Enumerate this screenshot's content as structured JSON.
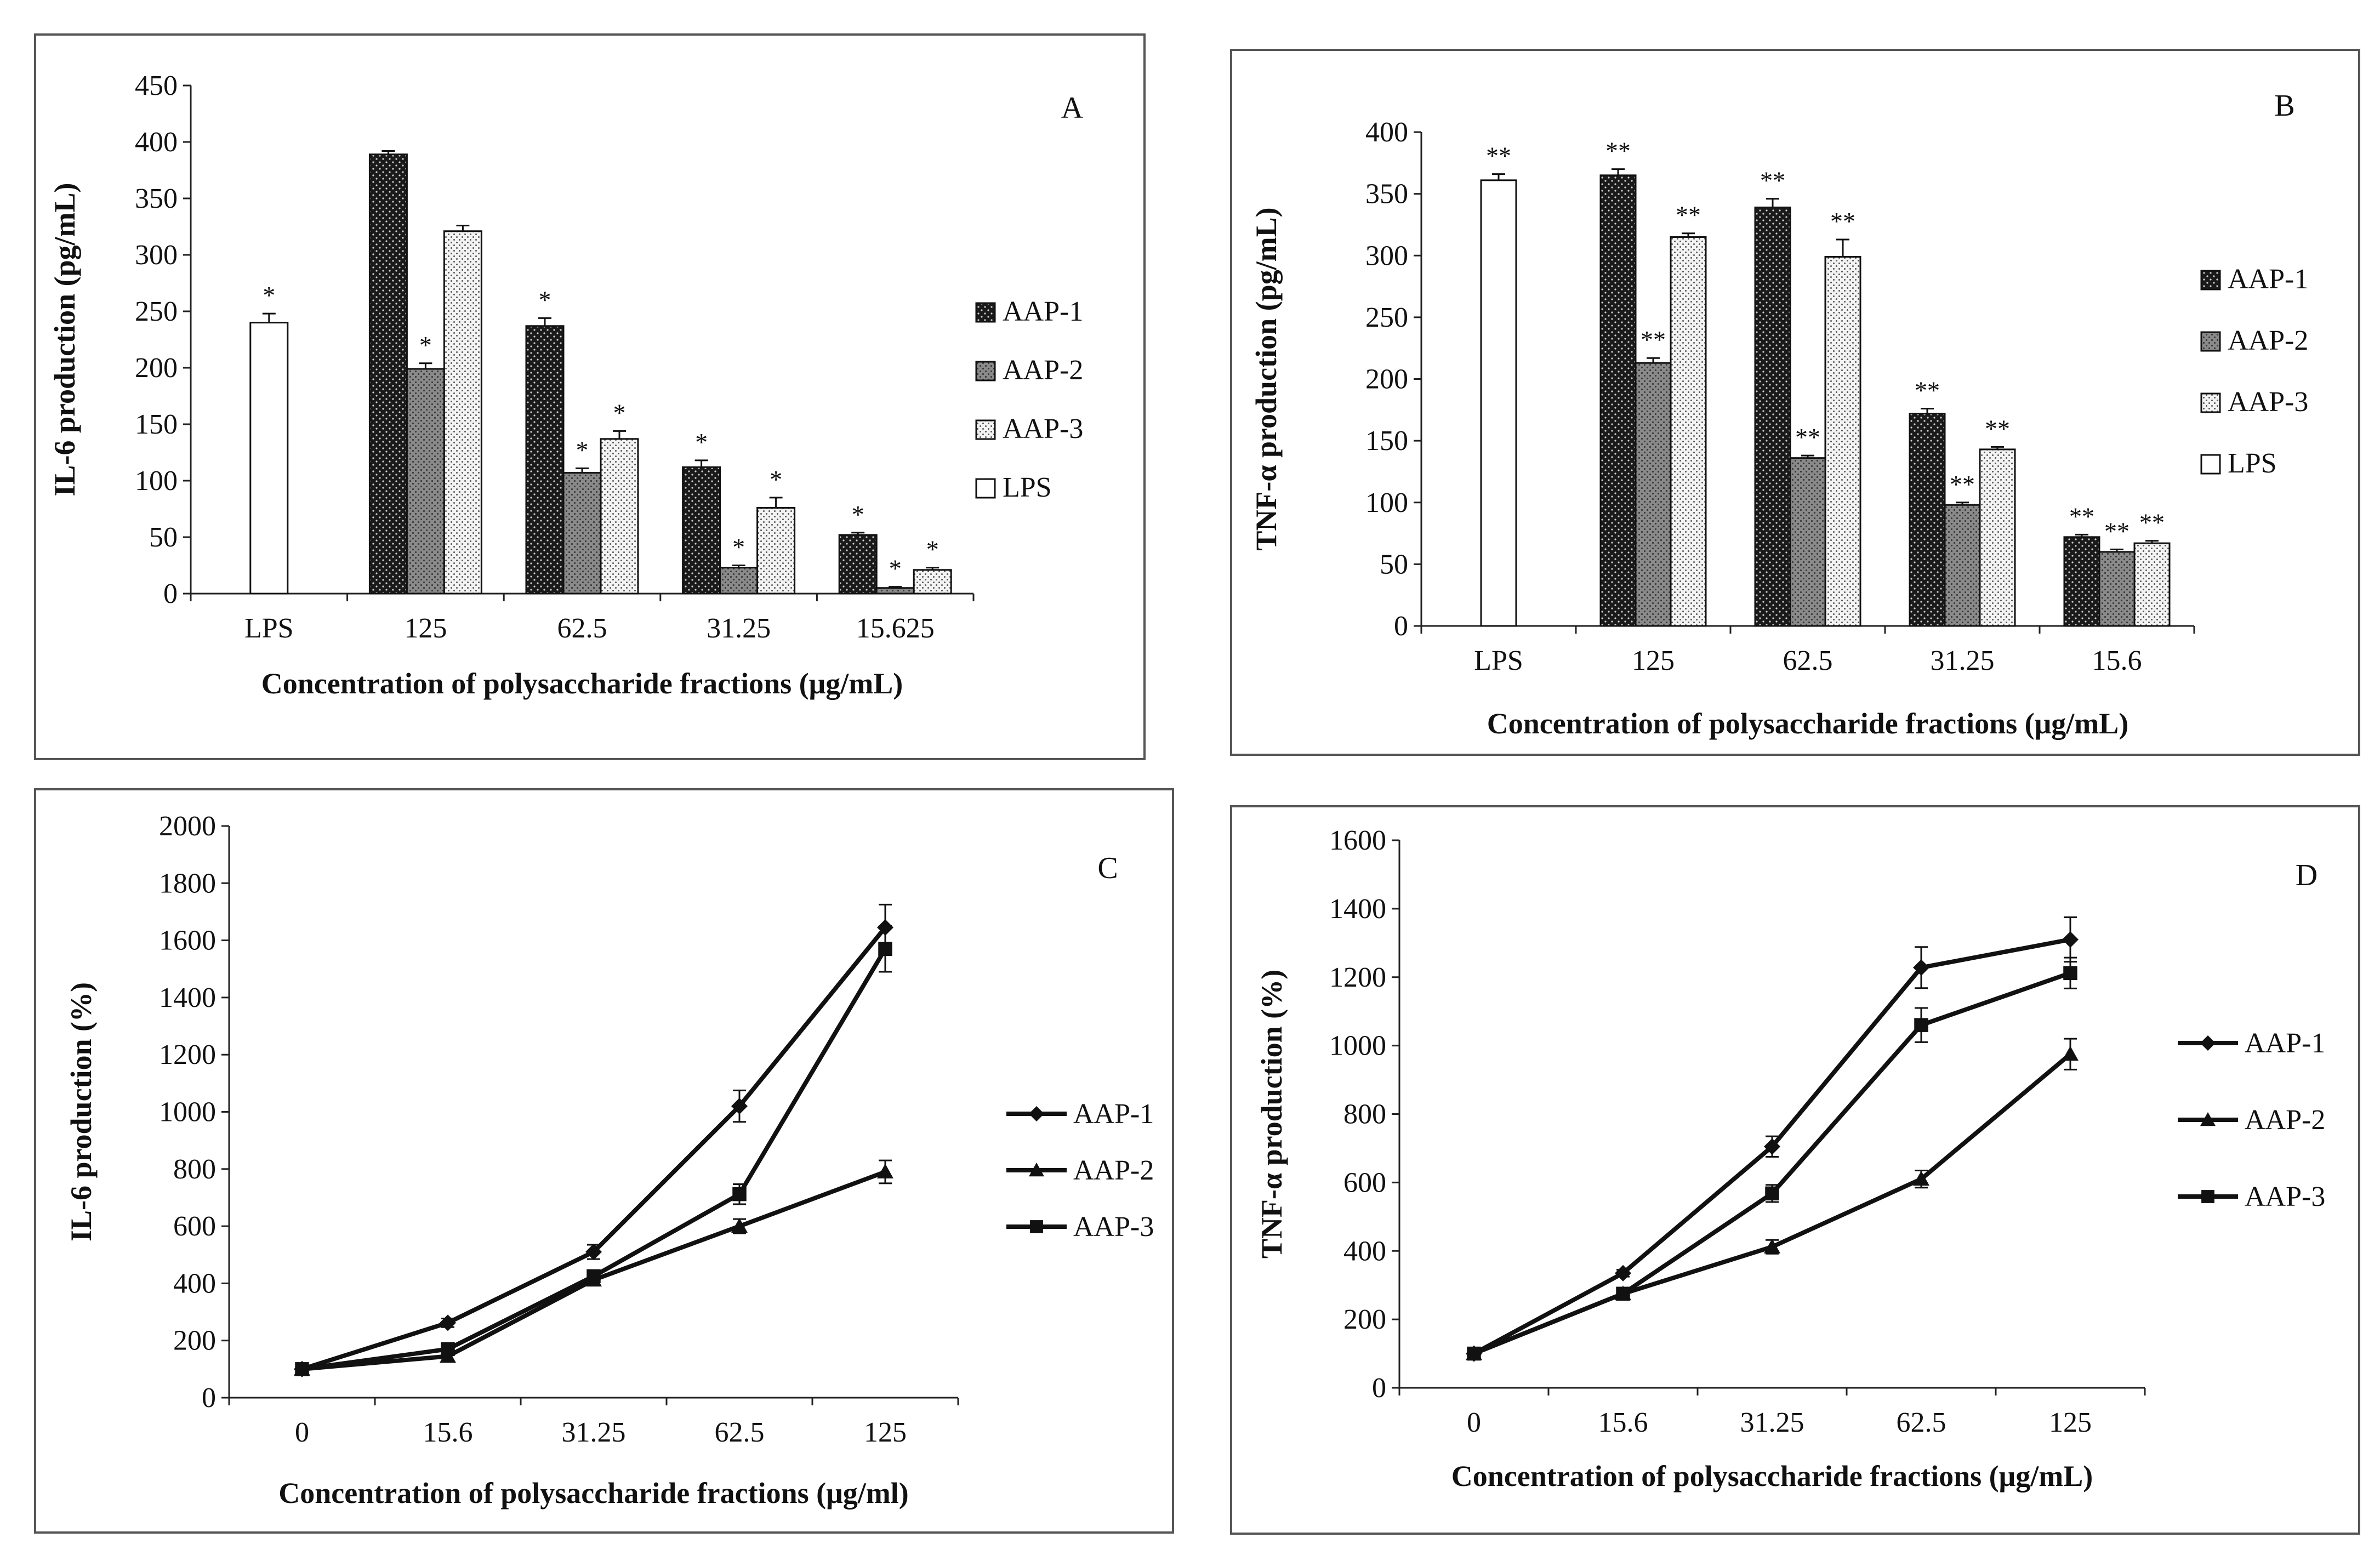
{
  "chart_data": [
    {
      "id": "A",
      "type": "bar",
      "panel_letter": "A",
      "xlabel": "Concentration of polysaccharide fractions (μg/mL)",
      "ylabel": "IL-6 production (pg/mL)",
      "ylim": [
        0,
        450
      ],
      "yticks": [
        "0",
        "50",
        "100",
        "150",
        "200",
        "250",
        "300",
        "350",
        "400",
        "450"
      ],
      "categories": [
        "LPS",
        "125",
        "62.5",
        "31.25",
        "15.625"
      ],
      "legend": [
        "AAP-1",
        "AAP-2",
        "AAP-3",
        "LPS"
      ],
      "series": [
        {
          "name": "LPS",
          "pattern": "white",
          "values": [
            240,
            null,
            null,
            null,
            null
          ],
          "errors": [
            8,
            null,
            null,
            null,
            null
          ],
          "marks": [
            "*",
            null,
            null,
            null,
            null
          ]
        },
        {
          "name": "AAP-1",
          "pattern": "dark",
          "values": [
            null,
            389,
            237,
            112,
            52
          ],
          "errors": [
            null,
            3,
            7,
            6,
            2
          ],
          "marks": [
            null,
            null,
            "*",
            "*",
            "*"
          ]
        },
        {
          "name": "AAP-2",
          "pattern": "grey",
          "values": [
            null,
            199,
            107,
            23,
            5
          ],
          "errors": [
            null,
            5,
            4,
            2,
            1
          ],
          "marks": [
            null,
            "*",
            "*",
            "*",
            "*"
          ]
        },
        {
          "name": "AAP-3",
          "pattern": "dots",
          "values": [
            null,
            321,
            137,
            76,
            21
          ],
          "errors": [
            null,
            5,
            7,
            9,
            2
          ],
          "marks": [
            null,
            null,
            "*",
            "*",
            "*"
          ]
        }
      ]
    },
    {
      "id": "B",
      "type": "bar",
      "panel_letter": "B",
      "xlabel": "Concentration of polysaccharide fractions (μg/mL)",
      "ylabel": "TNF-α production (pg/mL)",
      "ylim": [
        0,
        400
      ],
      "yticks": [
        "0",
        "50",
        "100",
        "150",
        "200",
        "250",
        "300",
        "350",
        "400"
      ],
      "categories": [
        "LPS",
        "125",
        "62.5",
        "31.25",
        "15.6"
      ],
      "legend": [
        "AAP-1",
        "AAP-2",
        "AAP-3",
        "LPS"
      ],
      "series": [
        {
          "name": "LPS",
          "pattern": "white",
          "values": [
            361,
            null,
            null,
            null,
            null
          ],
          "errors": [
            5,
            null,
            null,
            null,
            null
          ],
          "marks": [
            "**",
            null,
            null,
            null,
            null
          ]
        },
        {
          "name": "AAP-1",
          "pattern": "dark",
          "values": [
            null,
            365,
            339,
            172,
            72
          ],
          "errors": [
            null,
            5,
            7,
            4,
            2
          ],
          "marks": [
            null,
            "**",
            "**",
            "**",
            "**"
          ]
        },
        {
          "name": "AAP-2",
          "pattern": "grey",
          "values": [
            null,
            213,
            136,
            98,
            60
          ],
          "errors": [
            null,
            4,
            2,
            2,
            2
          ],
          "marks": [
            null,
            "**",
            "**",
            "**",
            "**"
          ]
        },
        {
          "name": "AAP-3",
          "pattern": "dots",
          "values": [
            null,
            315,
            299,
            143,
            67
          ],
          "errors": [
            null,
            3,
            14,
            2,
            2
          ],
          "marks": [
            null,
            "**",
            "**",
            "**",
            "**"
          ]
        }
      ]
    },
    {
      "id": "C",
      "type": "line",
      "panel_letter": "C",
      "xlabel": "Concentration of polysaccharide fractions (μg/ml)",
      "ylabel": "IL-6 production (%)",
      "ylim": [
        0,
        2000
      ],
      "yticks": [
        "0",
        "200",
        "400",
        "600",
        "800",
        "1000",
        "1200",
        "1400",
        "1600",
        "1800",
        "2000"
      ],
      "categories": [
        "0",
        "15.6",
        "31.25",
        "62.5",
        "125"
      ],
      "legend": [
        "AAP-1",
        "AAP-2",
        "AAP-3"
      ],
      "series": [
        {
          "name": "AAP-1",
          "marker": "diamond",
          "values": [
            100,
            262,
            510,
            1020,
            1645
          ],
          "errors": [
            0,
            15,
            25,
            55,
            80
          ]
        },
        {
          "name": "AAP-2",
          "marker": "triangle",
          "values": [
            100,
            145,
            412,
            600,
            790
          ],
          "errors": [
            0,
            15,
            20,
            25,
            40
          ]
        },
        {
          "name": "AAP-3",
          "marker": "square",
          "values": [
            100,
            170,
            425,
            712,
            1570
          ],
          "errors": [
            0,
            15,
            20,
            35,
            80
          ]
        }
      ]
    },
    {
      "id": "D",
      "type": "line",
      "panel_letter": "D",
      "xlabel": "Concentration of polysaccharide fractions (μg/mL)",
      "ylabel": "TNF-α production (%)",
      "ylim": [
        0,
        1600
      ],
      "yticks": [
        "0",
        "200",
        "400",
        "600",
        "800",
        "1000",
        "1200",
        "1400",
        "1600"
      ],
      "categories": [
        "0",
        "15.6",
        "31.25",
        "62.5",
        "125"
      ],
      "legend": [
        "AAP-1",
        "AAP-2",
        "AAP-3"
      ],
      "series": [
        {
          "name": "AAP-1",
          "marker": "diamond",
          "values": [
            100,
            335,
            705,
            1228,
            1310
          ],
          "errors": [
            0,
            10,
            30,
            60,
            65
          ]
        },
        {
          "name": "AAP-2",
          "marker": "triangle",
          "values": [
            100,
            275,
            412,
            610,
            975
          ],
          "errors": [
            0,
            10,
            20,
            25,
            45
          ]
        },
        {
          "name": "AAP-3",
          "marker": "square",
          "values": [
            100,
            275,
            568,
            1060,
            1212
          ],
          "errors": [
            0,
            10,
            25,
            50,
            45
          ]
        }
      ]
    }
  ]
}
